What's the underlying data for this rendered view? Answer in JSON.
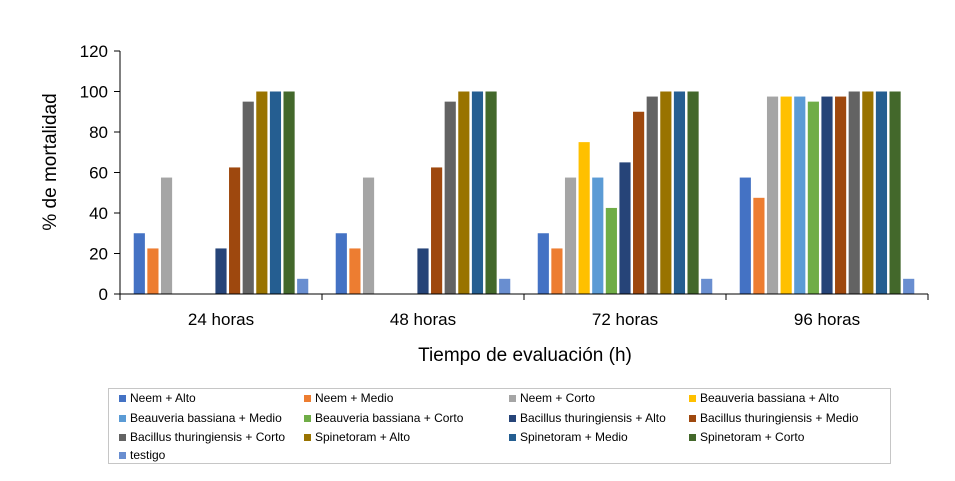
{
  "chart_data": {
    "type": "bar",
    "title": "",
    "xlabel": "Tiempo de evaluación (h)",
    "ylabel": "% de mortalidad",
    "ylim": [
      0,
      120
    ],
    "yticks": [
      0,
      20,
      40,
      60,
      80,
      100,
      120
    ],
    "grid": false,
    "legend_position": "bottom",
    "categories": [
      "24 horas",
      "48 horas",
      "72 horas",
      "96 horas"
    ],
    "series": [
      {
        "name": "Neem + Alto",
        "color": "#4472C4",
        "values": [
          30,
          30,
          30,
          57.5
        ]
      },
      {
        "name": "Neem + Medio",
        "color": "#ED7D31",
        "values": [
          22.5,
          22.5,
          22.5,
          47.5
        ]
      },
      {
        "name": "Neem + Corto",
        "color": "#A5A5A5",
        "values": [
          57.5,
          57.5,
          57.5,
          97.5
        ]
      },
      {
        "name": "Beauveria bassiana + Alto",
        "color": "#FFC000",
        "values": [
          0,
          0,
          75,
          97.5
        ]
      },
      {
        "name": "Beauveria bassiana + Medio",
        "color": "#5B9BD5",
        "values": [
          0,
          0,
          57.5,
          97.5
        ]
      },
      {
        "name": "Beauveria bassiana + Corto",
        "color": "#70AD47",
        "values": [
          0,
          0,
          42.5,
          95
        ]
      },
      {
        "name": "Bacillus thuringiensis + Alto",
        "color": "#264478",
        "values": [
          22.5,
          22.5,
          65,
          97.5
        ]
      },
      {
        "name": "Bacillus thuringiensis + Medio",
        "color": "#9E480E",
        "values": [
          62.5,
          62.5,
          90,
          97.5
        ]
      },
      {
        "name": "Bacillus thuringiensis + Corto",
        "color": "#636363",
        "values": [
          95,
          95,
          97.5,
          100
        ]
      },
      {
        "name": "Spinetoram + Alto",
        "color": "#997300",
        "values": [
          100,
          100,
          100,
          100
        ]
      },
      {
        "name": "Spinetoram + Medio",
        "color": "#255E91",
        "values": [
          100,
          100,
          100,
          100
        ]
      },
      {
        "name": "Spinetoram + Corto",
        "color": "#43682B",
        "values": [
          100,
          100,
          100,
          100
        ]
      },
      {
        "name": "testigo",
        "color": "#698ED0",
        "values": [
          7.5,
          7.5,
          7.5,
          7.5
        ]
      }
    ]
  }
}
